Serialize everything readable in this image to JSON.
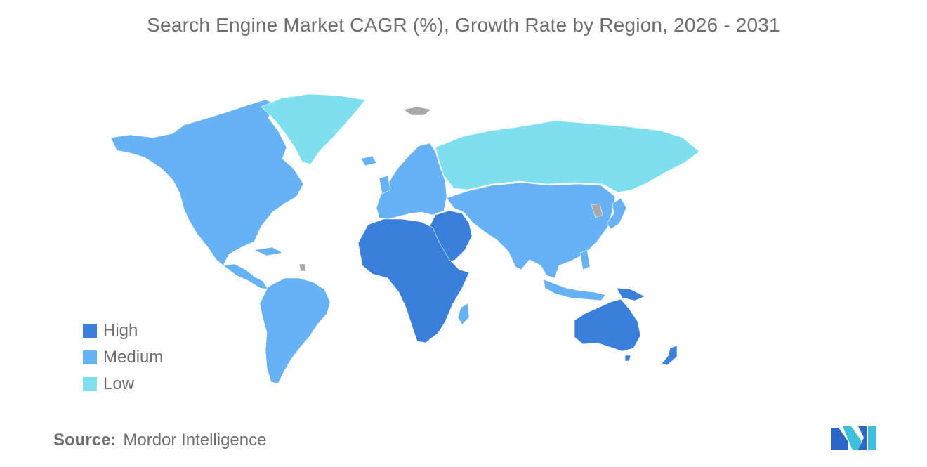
{
  "title": "Search Engine Market CAGR (%), Growth Rate by Region, 2026 - 2031",
  "legend": [
    {
      "label": "High",
      "color": "#3a7fd9"
    },
    {
      "label": "Medium",
      "color": "#66b2f5"
    },
    {
      "label": "Low",
      "color": "#7ee0ef"
    }
  ],
  "no_data_color": "#a9a9a9",
  "regions": [
    {
      "name": "North America",
      "level": "Medium"
    },
    {
      "name": "Greenland",
      "level": "Low"
    },
    {
      "name": "Latin America",
      "level": "Medium"
    },
    {
      "name": "Europe",
      "level": "Medium"
    },
    {
      "name": "Russia",
      "level": "Low"
    },
    {
      "name": "Asia",
      "level": "Medium"
    },
    {
      "name": "Middle East",
      "level": "High"
    },
    {
      "name": "Africa",
      "level": "High"
    },
    {
      "name": "Australia and New Zealand",
      "level": "High"
    }
  ],
  "source": {
    "key": "Source:",
    "value": "Mordor Intelligence"
  }
}
